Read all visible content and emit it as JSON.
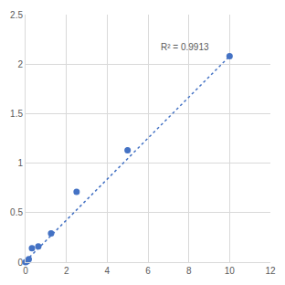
{
  "chart_data": {
    "type": "scatter",
    "series": [
      {
        "type": "scatter",
        "marker": "circle",
        "color": "#4472c4",
        "x": [
          0,
          0.078,
          0.156,
          0.3125,
          0.625,
          1.25,
          2.5,
          5,
          10
        ],
        "values": [
          0.0,
          0.01,
          0.03,
          0.14,
          0.16,
          0.29,
          0.71,
          1.13,
          2.08
        ]
      },
      {
        "type": "line",
        "line_style": "dotted",
        "color": "#4472c4",
        "x": [
          0,
          10
        ],
        "values": [
          0.01,
          2.08
        ]
      }
    ],
    "annotations": [
      {
        "text": "R² = 0.9913",
        "x": 9.1,
        "y": 2.1
      }
    ],
    "xlim": [
      0,
      12
    ],
    "xticks": [
      0,
      2,
      4,
      6,
      8,
      10,
      12
    ],
    "ylim": [
      0,
      2.5
    ],
    "yticks": [
      0,
      0.5,
      1,
      1.5,
      2,
      2.5
    ],
    "grid": true
  }
}
